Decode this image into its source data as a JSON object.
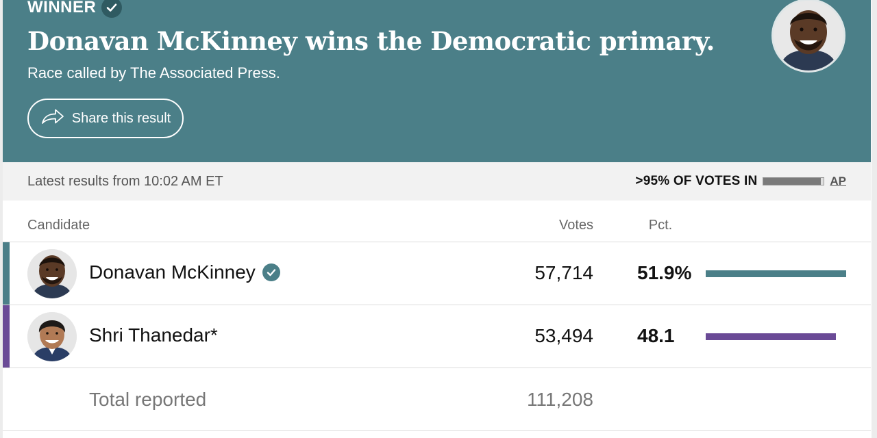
{
  "banner": {
    "winner_label": "WINNER",
    "headline": "Donavan McKinney wins the Democratic primary.",
    "called_by": "Race called by The Associated Press.",
    "share_label": "Share this result",
    "background_color": "#4b7f88"
  },
  "status": {
    "latest": "Latest results from 10:02 AM ET",
    "votes_in": ">95% OF VOTES IN",
    "votes_in_fraction": 0.95,
    "source": "AP"
  },
  "table": {
    "headers": {
      "candidate": "Candidate",
      "votes": "Votes",
      "pct": "Pct."
    },
    "rows": [
      {
        "name": "Donavan McKinney",
        "votes": "57,714",
        "pct": "51.9%",
        "pct_value": 51.9,
        "winner": true,
        "color": "#4b7f88"
      },
      {
        "name": "Shri Thanedar*",
        "votes": "53,494",
        "pct": "48.1",
        "pct_value": 48.1,
        "winner": false,
        "color": "#6a4a96"
      }
    ],
    "total_label": "Total reported",
    "total_votes": "111,208"
  },
  "icons": {
    "winner": "checkmark-icon",
    "share": "share-arrow-icon",
    "winner_badge": "checkmark-badge-icon"
  }
}
